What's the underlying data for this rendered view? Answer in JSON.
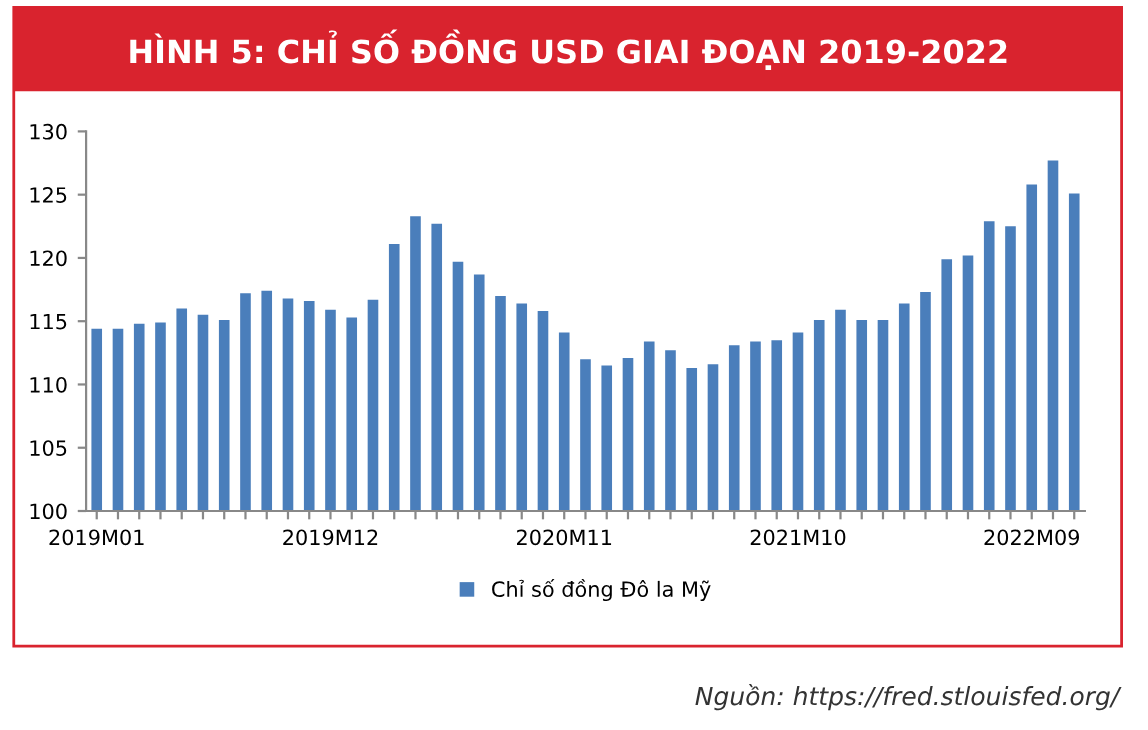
{
  "chart_data": {
    "type": "bar",
    "title": "HÌNH 5: CHỈ SỐ ĐỒNG USD GIAI ĐOẠN 2019-2022",
    "categories": [
      "2019M01",
      null,
      null,
      null,
      null,
      null,
      null,
      null,
      null,
      null,
      null,
      "2019M12",
      null,
      null,
      null,
      null,
      null,
      null,
      null,
      null,
      null,
      null,
      "2020M11",
      null,
      null,
      null,
      null,
      null,
      null,
      null,
      null,
      null,
      null,
      "2021M10",
      null,
      null,
      null,
      null,
      null,
      null,
      null,
      null,
      null,
      null,
      "2022M09",
      null,
      null
    ],
    "series": [
      {
        "name": "Chỉ số đồng Đô la Mỹ",
        "color": "#4a7ebb",
        "values": [
          114.4,
          114.4,
          114.8,
          114.9,
          116,
          115.5,
          115.1,
          117.2,
          117.4,
          116.8,
          116.6,
          115.9,
          115.3,
          116.7,
          121.1,
          123.3,
          122.7,
          119.7,
          118.7,
          117,
          116.4,
          115.8,
          114.1,
          112,
          111.5,
          112.1,
          113.4,
          112.7,
          111.3,
          111.6,
          113.1,
          113.4,
          113.5,
          114.1,
          115.1,
          115.9,
          115.1,
          115.1,
          116.4,
          117.3,
          119.9,
          120.2,
          122.9,
          122.5,
          125.8,
          127.7,
          125.1
        ]
      }
    ],
    "ylim": [
      100,
      130
    ],
    "yticks": [
      100,
      105,
      110,
      115,
      120,
      125,
      130
    ],
    "grid": false,
    "legend": "bottom",
    "annotations": [
      "Nguồn: https://fred.stlouisfed.org/"
    ]
  }
}
